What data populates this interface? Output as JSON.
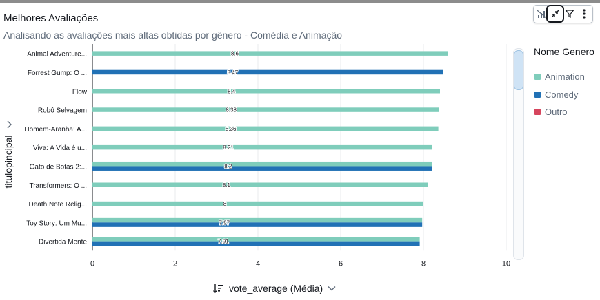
{
  "header": {
    "title": "Melhores Avaliações",
    "subtitle": "Analisando as avaliações mais altas obtidas por gênero - Comédia e Animação"
  },
  "toolbar": {
    "icons": [
      "chart-signal-icon",
      "collapse-icon",
      "filter-icon",
      "more-options-icon"
    ]
  },
  "legend": {
    "title": "Nome Genero",
    "items": [
      {
        "label": "Animation",
        "color": "#7fcdbb"
      },
      {
        "label": "Comedy",
        "color": "#2171b5"
      },
      {
        "label": "Outro",
        "color": "#d6455d"
      }
    ]
  },
  "axes": {
    "x_title": "vote_average (Média)",
    "y_title": "titulopincipal"
  },
  "chart_data": {
    "type": "bar",
    "orientation": "horizontal",
    "xlim": [
      0,
      10
    ],
    "xticks": [
      "0",
      "2",
      "4",
      "6",
      "8",
      "10"
    ],
    "grid": true,
    "legend_position": "right",
    "categories": [
      "Animal Adventure...",
      "Forrest Gump: O ...",
      "Flow",
      "Robô Selvagem",
      "Homem-Aranha: A...",
      "Viva: A Vida é u...",
      "Gato de Botas 2:...",
      "Transformers: O ...",
      "Death Note Relig...",
      "Toy Story: Um Mu...",
      "Divertida Mente"
    ],
    "series": [
      {
        "name": "Animation",
        "color": "#7fcdbb",
        "values": [
          8.6,
          null,
          8.4,
          8.38,
          8.36,
          8.21,
          8.2,
          8.1,
          8,
          7.97,
          7.91
        ]
      },
      {
        "name": "Comedy",
        "color": "#2171b5",
        "values": [
          null,
          8.47,
          null,
          null,
          null,
          null,
          8.2,
          null,
          null,
          7.97,
          7.91
        ]
      }
    ],
    "data_labels": [
      "8.6",
      "8.47",
      "8.4",
      "8.38",
      "8.36",
      "8.21",
      "8.2",
      "8.1",
      "8",
      "7.97",
      "7.91"
    ]
  }
}
